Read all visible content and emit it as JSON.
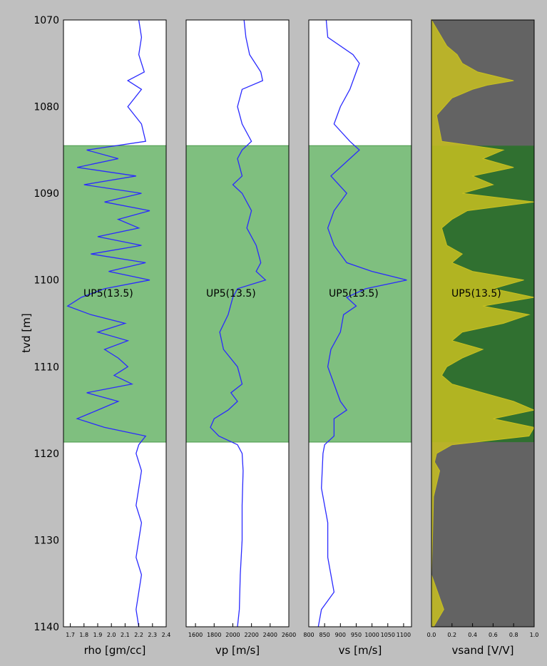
{
  "figure": {
    "ylabel": "tvd [m]",
    "y_range": [
      1070,
      1140
    ],
    "y_inverted": true,
    "y_ticks": [
      1070,
      1080,
      1090,
      1100,
      1110,
      1120,
      1130,
      1140
    ],
    "colors": {
      "background": "#bfbfbf",
      "curve": "#2a2aff",
      "zone_fill": "#7fbf7f",
      "vsand_shale": "#636363",
      "vsand_sand": "#307030",
      "vsand_curve": "#c8c020"
    }
  },
  "chart_data": [
    {
      "type": "line",
      "xlabel": "rho [gm/cc]",
      "xlim": [
        1.65,
        2.4
      ],
      "x_ticks": [
        "1.7",
        "1.8",
        "1.9",
        "2.0",
        "2.1",
        "2.2",
        "2.3",
        "2.4"
      ],
      "zone": {
        "top": 1084.5,
        "base": 1118.7,
        "label": "UP5(13.5)"
      },
      "series": [
        {
          "depth": [
            1070,
            1072,
            1074,
            1076,
            1077,
            1078,
            1080,
            1082,
            1084,
            1085,
            1086,
            1087,
            1088,
            1089,
            1090,
            1091,
            1092,
            1093,
            1094,
            1095,
            1096,
            1097,
            1098,
            1099,
            1100,
            1101,
            1102,
            1103,
            1104,
            1105,
            1106,
            1107,
            1108,
            1109,
            1110,
            1111,
            1112,
            1113,
            1114,
            1115,
            1116,
            1117,
            1118,
            1119,
            1120,
            1122,
            1124,
            1126,
            1128,
            1130,
            1132,
            1134,
            1136,
            1138,
            1140
          ],
          "values": [
            2.2,
            2.22,
            2.2,
            2.24,
            2.12,
            2.22,
            2.12,
            2.22,
            2.25,
            1.82,
            2.05,
            1.75,
            2.18,
            1.8,
            2.22,
            1.95,
            2.28,
            2.05,
            2.2,
            1.9,
            2.22,
            1.85,
            2.25,
            1.98,
            2.28,
            1.95,
            1.78,
            1.68,
            1.85,
            2.1,
            1.9,
            2.12,
            1.95,
            2.05,
            2.12,
            2.02,
            2.15,
            1.82,
            2.05,
            1.9,
            1.75,
            1.95,
            2.25,
            2.2,
            2.18,
            2.22,
            2.2,
            2.18,
            2.22,
            2.2,
            2.18,
            2.22,
            2.2,
            2.18,
            2.2
          ]
        }
      ]
    },
    {
      "type": "line",
      "xlabel": "vp [m/s]",
      "xlim": [
        1500,
        2600
      ],
      "x_ticks": [
        "1600",
        "1800",
        "2000",
        "2200",
        "2400",
        "2600"
      ],
      "zone": {
        "top": 1084.5,
        "base": 1118.7,
        "label": "UP5(13.5)"
      },
      "series": [
        {
          "depth": [
            1070,
            1072,
            1074,
            1076,
            1077,
            1078,
            1080,
            1082,
            1084,
            1085,
            1086,
            1088,
            1089,
            1090,
            1092,
            1094,
            1096,
            1098,
            1099,
            1100,
            1101,
            1102,
            1104,
            1106,
            1108,
            1110,
            1112,
            1113,
            1114,
            1115,
            1116,
            1117,
            1118,
            1119,
            1120,
            1122,
            1126,
            1130,
            1134,
            1138,
            1140
          ],
          "values": [
            2120,
            2140,
            2180,
            2300,
            2320,
            2100,
            2050,
            2100,
            2200,
            2100,
            2050,
            2100,
            2000,
            2100,
            2200,
            2150,
            2250,
            2300,
            2250,
            2350,
            2050,
            2000,
            1950,
            1860,
            1900,
            2050,
            2100,
            1980,
            2050,
            1950,
            1800,
            1760,
            1850,
            2050,
            2100,
            2110,
            2100,
            2100,
            2080,
            2070,
            2050
          ]
        }
      ]
    },
    {
      "type": "line",
      "xlabel": "vs [m/s]",
      "xlim": [
        800,
        1125
      ],
      "x_ticks": [
        "800",
        "850",
        "900",
        "950",
        "1000",
        "1050",
        "1100"
      ],
      "zone": {
        "top": 1084.5,
        "base": 1118.7,
        "label": "UP5(13.5)"
      },
      "series": [
        {
          "depth": [
            1070,
            1072,
            1074,
            1075,
            1076,
            1078,
            1080,
            1082,
            1084,
            1085,
            1086,
            1088,
            1090,
            1092,
            1094,
            1096,
            1098,
            1099,
            1100,
            1101,
            1102,
            1103,
            1104,
            1106,
            1108,
            1110,
            1112,
            1114,
            1115,
            1116,
            1118,
            1119,
            1120,
            1124,
            1128,
            1132,
            1136,
            1138,
            1140
          ],
          "values": [
            855,
            860,
            940,
            960,
            950,
            930,
            900,
            880,
            930,
            960,
            930,
            870,
            920,
            880,
            860,
            880,
            920,
            1000,
            1110,
            980,
            920,
            950,
            910,
            900,
            870,
            860,
            880,
            900,
            920,
            880,
            880,
            850,
            845,
            840,
            860,
            860,
            880,
            840,
            830
          ]
        }
      ]
    },
    {
      "type": "area",
      "xlabel": "vsand [V/V]",
      "xlim": [
        0,
        1
      ],
      "x_ticks": [
        "0.0",
        "0.2",
        "0.4",
        "0.6",
        "0.8",
        "1.0"
      ],
      "zone": {
        "top": 1084.5,
        "base": 1118.7,
        "label": "UP5(13.5)"
      },
      "series": [
        {
          "depth": [
            1070,
            1073,
            1074,
            1075,
            1076,
            1077,
            1077.5,
            1078,
            1079,
            1081,
            1084,
            1085,
            1086,
            1087,
            1088,
            1089,
            1090,
            1091,
            1092,
            1093,
            1094,
            1096,
            1097,
            1098,
            1099,
            1100,
            1101,
            1102,
            1103,
            1104,
            1105,
            1106,
            1107,
            1108,
            1109,
            1110,
            1111,
            1112,
            1113,
            1114,
            1115,
            1116,
            1117,
            1118,
            1119,
            1120,
            1121,
            1122,
            1125,
            1130,
            1134,
            1138,
            1140
          ],
          "values": [
            0,
            0.15,
            0.25,
            0.3,
            0.45,
            0.8,
            0.55,
            0.4,
            0.2,
            0.05,
            0.1,
            0.7,
            0.5,
            0.8,
            0.4,
            0.6,
            0.3,
            1.0,
            0.35,
            0.2,
            0.1,
            0.15,
            0.3,
            0.2,
            0.4,
            0.9,
            0.6,
            1.0,
            0.5,
            0.95,
            0.7,
            0.3,
            0.2,
            0.5,
            0.3,
            0.15,
            0.1,
            0.2,
            0.5,
            0.8,
            1.0,
            0.6,
            1.0,
            0.95,
            0.2,
            0.05,
            0.03,
            0.08,
            0.02,
            0.01,
            0.0,
            0.12,
            0.02
          ]
        }
      ]
    }
  ]
}
